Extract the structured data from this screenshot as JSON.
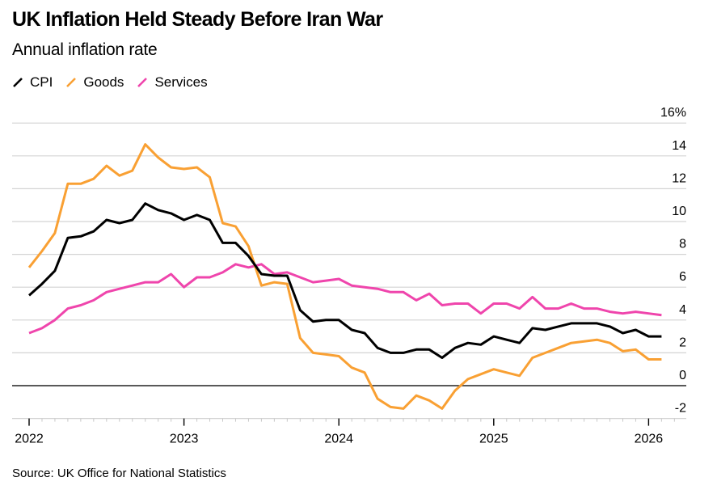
{
  "header": {
    "title": "UK Inflation Held Steady Before Iran War",
    "subtitle": "Annual inflation rate"
  },
  "legend": [
    {
      "label": "CPI",
      "color": "#000000"
    },
    {
      "label": "Goods",
      "color": "#f9a033"
    },
    {
      "label": "Services",
      "color": "#ef45ac"
    }
  ],
  "footer": {
    "source": "Source: UK Office for National Statistics"
  },
  "chart_data": {
    "type": "line",
    "title": "UK Inflation Held Steady Before Iran War",
    "subtitle": "Annual inflation rate",
    "xlabel": "",
    "ylabel": "",
    "y_unit": "%",
    "ylim": [
      -2,
      16
    ],
    "y_ticks": [
      16,
      14,
      12,
      10,
      8,
      6,
      4,
      2,
      0,
      -2
    ],
    "y_tick_labels": [
      "16%",
      "14",
      "12",
      "10",
      "8",
      "6",
      "4",
      "2",
      "0",
      "-2"
    ],
    "y_axis_position": "right",
    "grid": true,
    "legend_position": "top-left",
    "x_start": "2022-01",
    "x_end": "2026-02",
    "x_tick_labels": [
      "2022",
      "2023",
      "2024",
      "2025",
      "2026"
    ],
    "x": [
      "2022-01",
      "2022-02",
      "2022-03",
      "2022-04",
      "2022-05",
      "2022-06",
      "2022-07",
      "2022-08",
      "2022-09",
      "2022-10",
      "2022-11",
      "2022-12",
      "2023-01",
      "2023-02",
      "2023-03",
      "2023-04",
      "2023-05",
      "2023-06",
      "2023-07",
      "2023-08",
      "2023-09",
      "2023-10",
      "2023-11",
      "2023-12",
      "2024-01",
      "2024-02",
      "2024-03",
      "2024-04",
      "2024-05",
      "2024-06",
      "2024-07",
      "2024-08",
      "2024-09",
      "2024-10",
      "2024-11",
      "2024-12",
      "2025-01",
      "2025-02",
      "2025-03",
      "2025-04",
      "2025-05",
      "2025-06",
      "2025-07",
      "2025-08",
      "2025-09",
      "2025-10",
      "2025-11",
      "2025-12",
      "2026-01",
      "2026-02"
    ],
    "series": [
      {
        "name": "CPI",
        "color": "#000000",
        "values": [
          5.5,
          6.2,
          7.0,
          9.0,
          9.1,
          9.4,
          10.1,
          9.9,
          10.1,
          11.1,
          10.7,
          10.5,
          10.1,
          10.4,
          10.1,
          8.7,
          8.7,
          7.9,
          6.8,
          6.7,
          6.7,
          4.6,
          3.9,
          4.0,
          4.0,
          3.4,
          3.2,
          2.3,
          2.0,
          2.0,
          2.2,
          2.2,
          1.7,
          2.3,
          2.6,
          2.5,
          3.0,
          2.8,
          2.6,
          3.5,
          3.4,
          3.6,
          3.8,
          3.8,
          3.8,
          3.6,
          3.2,
          3.4,
          3.0,
          3.0
        ]
      },
      {
        "name": "Goods",
        "color": "#f9a033",
        "values": [
          7.2,
          8.2,
          9.3,
          12.3,
          12.3,
          12.6,
          13.4,
          12.8,
          13.1,
          14.7,
          13.9,
          13.3,
          13.2,
          13.3,
          12.7,
          9.9,
          9.7,
          8.5,
          6.1,
          6.3,
          6.2,
          2.9,
          2.0,
          1.9,
          1.8,
          1.1,
          0.8,
          -0.8,
          -1.3,
          -1.4,
          -0.6,
          -0.9,
          -1.4,
          -0.3,
          0.4,
          0.7,
          1.0,
          0.8,
          0.6,
          1.7,
          2.0,
          2.3,
          2.6,
          2.7,
          2.8,
          2.6,
          2.1,
          2.2,
          1.6,
          1.6
        ]
      },
      {
        "name": "Services",
        "color": "#ef45ac",
        "values": [
          3.2,
          3.5,
          4.0,
          4.7,
          4.9,
          5.2,
          5.7,
          5.9,
          6.1,
          6.3,
          6.3,
          6.8,
          6.0,
          6.6,
          6.6,
          6.9,
          7.4,
          7.2,
          7.4,
          6.8,
          6.9,
          6.6,
          6.3,
          6.4,
          6.5,
          6.1,
          6.0,
          5.9,
          5.7,
          5.7,
          5.2,
          5.6,
          4.9,
          5.0,
          5.0,
          4.4,
          5.0,
          5.0,
          4.7,
          5.4,
          4.7,
          4.7,
          5.0,
          4.7,
          4.7,
          4.5,
          4.4,
          4.5,
          4.4,
          4.3
        ]
      }
    ]
  }
}
